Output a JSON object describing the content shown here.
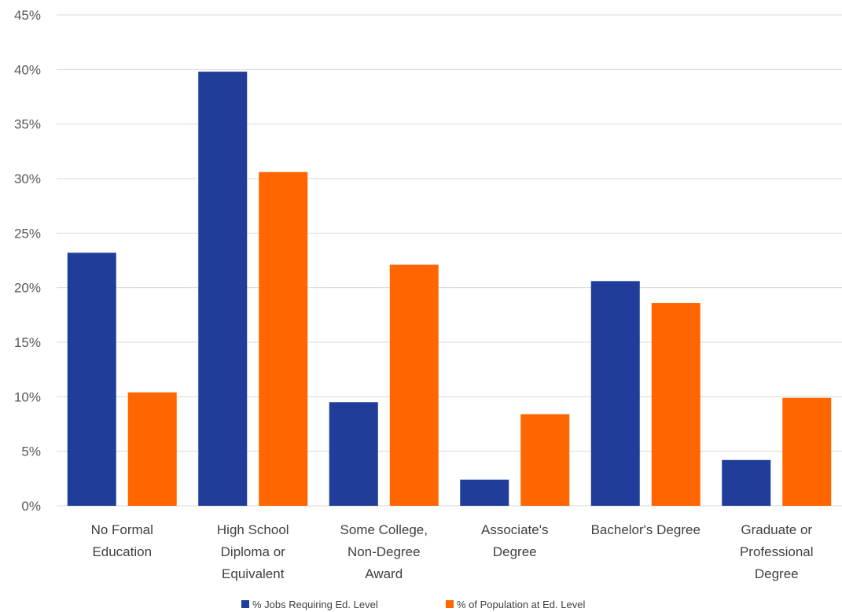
{
  "chart_data": {
    "type": "bar",
    "categories": [
      [
        "No Formal",
        "Education"
      ],
      [
        "High School",
        "Diploma or",
        "Equivalent"
      ],
      [
        "Some College,",
        "Non-Degree",
        "Award"
      ],
      [
        "Associate's",
        "Degree"
      ],
      [
        "Bachelor's Degree"
      ],
      [
        "Graduate or",
        "Professional",
        "Degree"
      ]
    ],
    "series": [
      {
        "name": "% Jobs Requiring Ed. Level",
        "color": "#1F3D99",
        "values": [
          23.2,
          39.8,
          9.5,
          2.4,
          20.6,
          4.2
        ]
      },
      {
        "name": "% of Population at Ed. Level",
        "color": "#FF6600",
        "values": [
          10.4,
          30.6,
          22.1,
          8.4,
          18.6,
          9.9
        ]
      }
    ],
    "ylim": [
      0,
      45
    ],
    "yticks": [
      "0%",
      "5%",
      "10%",
      "15%",
      "20%",
      "25%",
      "30%",
      "35%",
      "40%",
      "45%"
    ],
    "grid": true,
    "legend": "bottom"
  }
}
